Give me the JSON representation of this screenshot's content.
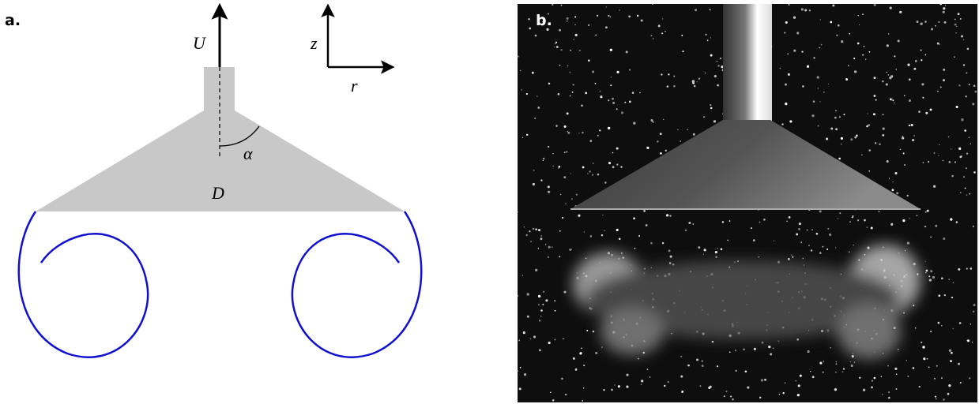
{
  "panels": [
    {
      "label": "a.",
      "symbols": {
        "velocity": "U",
        "vertical_axis": "z",
        "radial_axis": "r",
        "angle": "α",
        "diameter": "D"
      }
    },
    {
      "label": "b."
    }
  ]
}
